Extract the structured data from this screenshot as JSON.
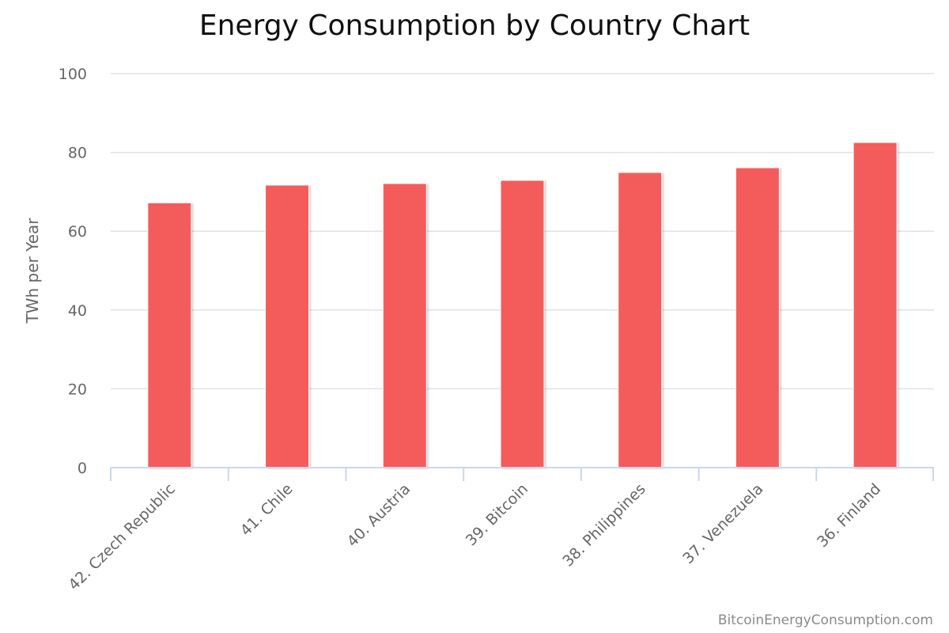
{
  "chart_data": {
    "type": "bar",
    "title": "Energy Consumption by Country Chart",
    "xlabel": "",
    "ylabel": "TWh per Year",
    "categories": [
      "42. Czech Republic",
      "41. Chile",
      "40. Austria",
      "39. Bitcoin",
      "38. Philippines",
      "37. Venezuela",
      "36. Finland"
    ],
    "values": [
      67.2,
      71.7,
      72.1,
      72.9,
      74.9,
      76.1,
      82.5
    ],
    "ylim": [
      0,
      100
    ],
    "yticks": [
      "0",
      "20",
      "40",
      "60",
      "80",
      "100"
    ],
    "grid": true,
    "legend": "none",
    "bar_color": "#f45b5b"
  },
  "credit": "BitcoinEnergyConsumption.com"
}
